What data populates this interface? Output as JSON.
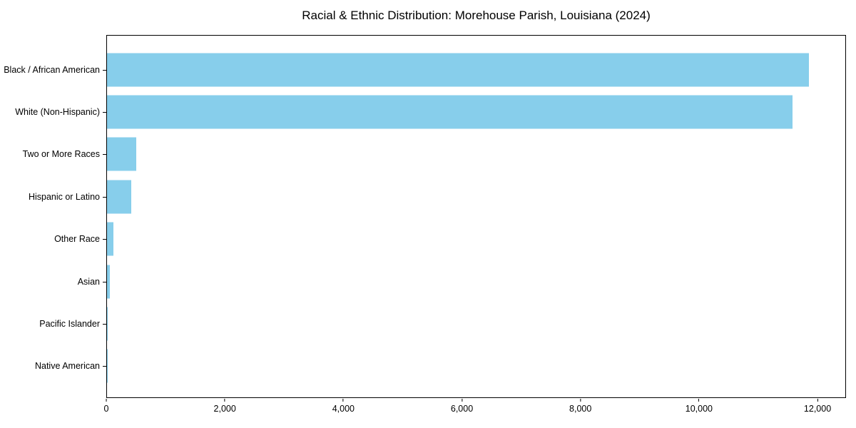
{
  "title": "Racial & Ethnic Distribution: Morehouse Parish, Louisiana (2024)",
  "colors": {
    "bar": "#87CEEB",
    "axis": "#000000",
    "background": "#FFFFFF"
  },
  "chart_data": {
    "type": "bar",
    "orientation": "horizontal",
    "title": "Racial & Ethnic Distribution: Morehouse Parish, Louisiana (2024)",
    "categories": [
      "Black / African American",
      "White (Non-Hispanic)",
      "Two or More Races",
      "Hispanic or Latino",
      "Other Race",
      "Asian",
      "Pacific Islander",
      "Native American"
    ],
    "values": [
      11870,
      11590,
      500,
      410,
      110,
      50,
      15,
      10
    ],
    "xlabel": "",
    "ylabel": "",
    "xlim": [
      0,
      12481
    ],
    "xticks": [
      0,
      2000,
      4000,
      6000,
      8000,
      10000,
      12000
    ],
    "xtick_labels": [
      "0",
      "2,000",
      "4,000",
      "6,000",
      "8,000",
      "10,000",
      "12,000"
    ],
    "grid": false,
    "legend": null,
    "bar_color": "#87CEEB"
  }
}
